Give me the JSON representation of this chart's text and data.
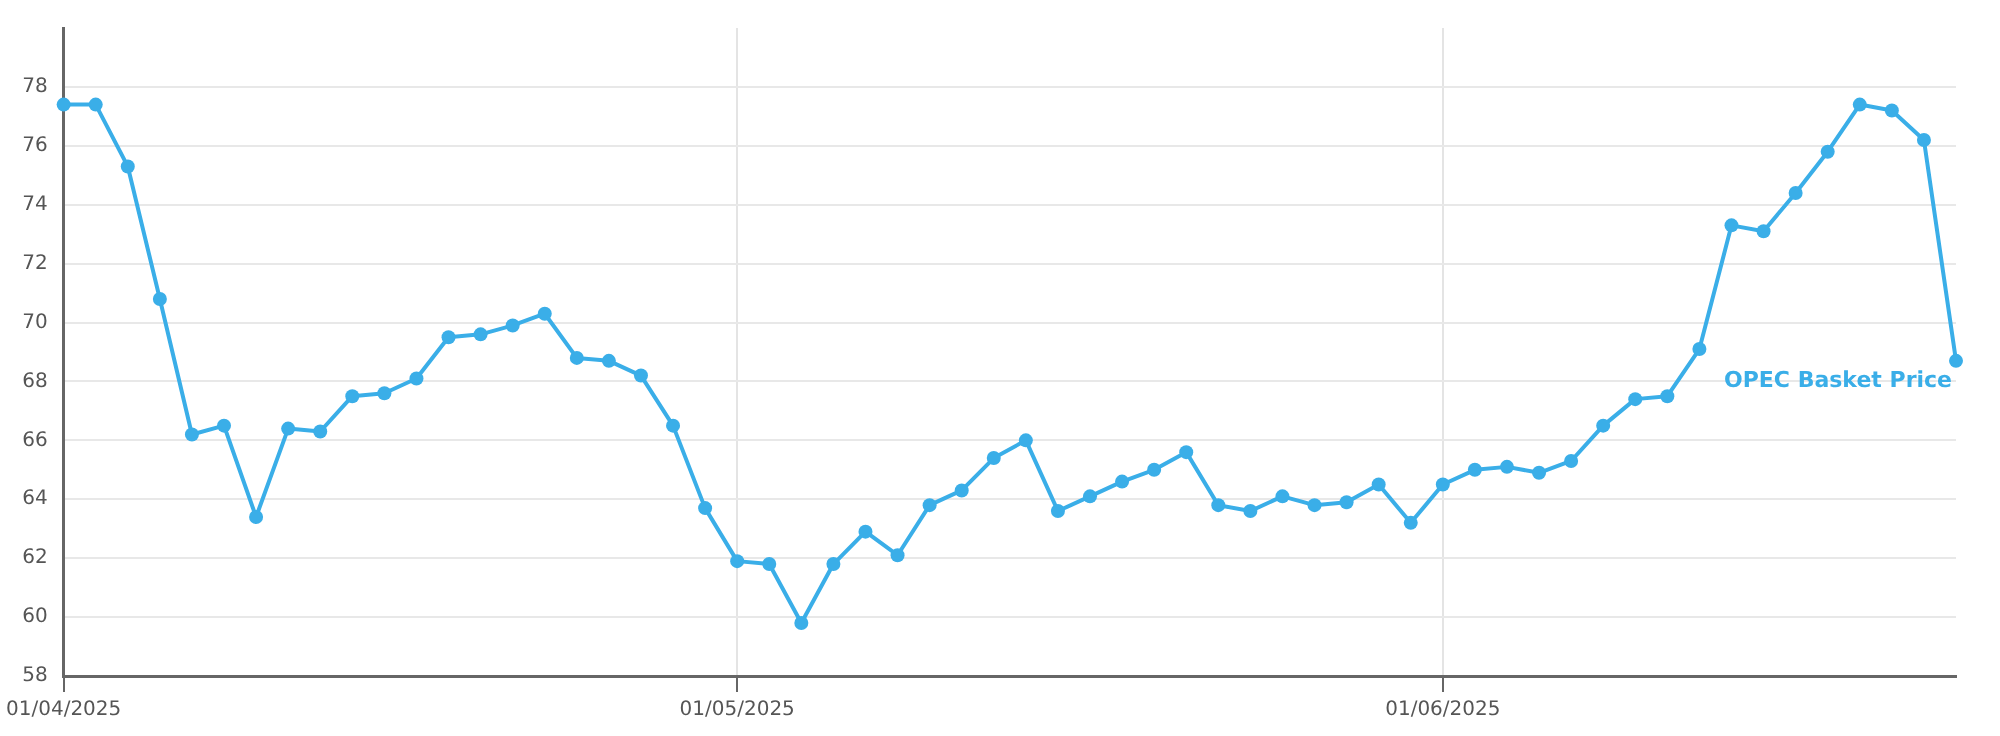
{
  "chart_data": {
    "type": "line",
    "categories": [
      "01/04/2025",
      null,
      null,
      null,
      null,
      null,
      null,
      null,
      null,
      null,
      null,
      null,
      null,
      null,
      null,
      null,
      null,
      null,
      null,
      null,
      null,
      "01/05/2025",
      null,
      null,
      null,
      null,
      null,
      null,
      null,
      null,
      null,
      null,
      null,
      null,
      null,
      null,
      null,
      null,
      null,
      null,
      null,
      null,
      null,
      "01/06/2025",
      null,
      null,
      null,
      null,
      null,
      null,
      null,
      null,
      null,
      null,
      null,
      null,
      null,
      null,
      null,
      null
    ],
    "series": [
      {
        "name": "OPEC Basket Price",
        "color": "#3aaee8",
        "values": [
          77.4,
          77.4,
          75.3,
          70.8,
          66.2,
          66.5,
          63.4,
          66.4,
          66.3,
          67.5,
          67.6,
          68.1,
          69.5,
          69.6,
          69.9,
          70.3,
          68.8,
          68.7,
          68.2,
          66.5,
          63.7,
          61.9,
          61.8,
          59.8,
          61.8,
          62.9,
          62.1,
          63.8,
          64.3,
          65.4,
          66.0,
          63.6,
          64.1,
          64.6,
          65.0,
          65.6,
          63.8,
          63.6,
          64.1,
          63.8,
          63.9,
          64.5,
          63.2,
          64.5,
          65.0,
          65.1,
          64.9,
          65.3,
          66.5,
          67.4,
          67.5,
          69.1,
          73.3,
          73.1,
          74.4,
          75.8,
          77.4,
          77.2,
          76.2,
          68.7
        ]
      }
    ],
    "ylim": [
      58,
      80
    ],
    "yticks": [
      58,
      60,
      62,
      64,
      66,
      68,
      70,
      72,
      74,
      76,
      78
    ],
    "grid": true,
    "legend": false,
    "marker": "circle",
    "line_style": "solid"
  }
}
